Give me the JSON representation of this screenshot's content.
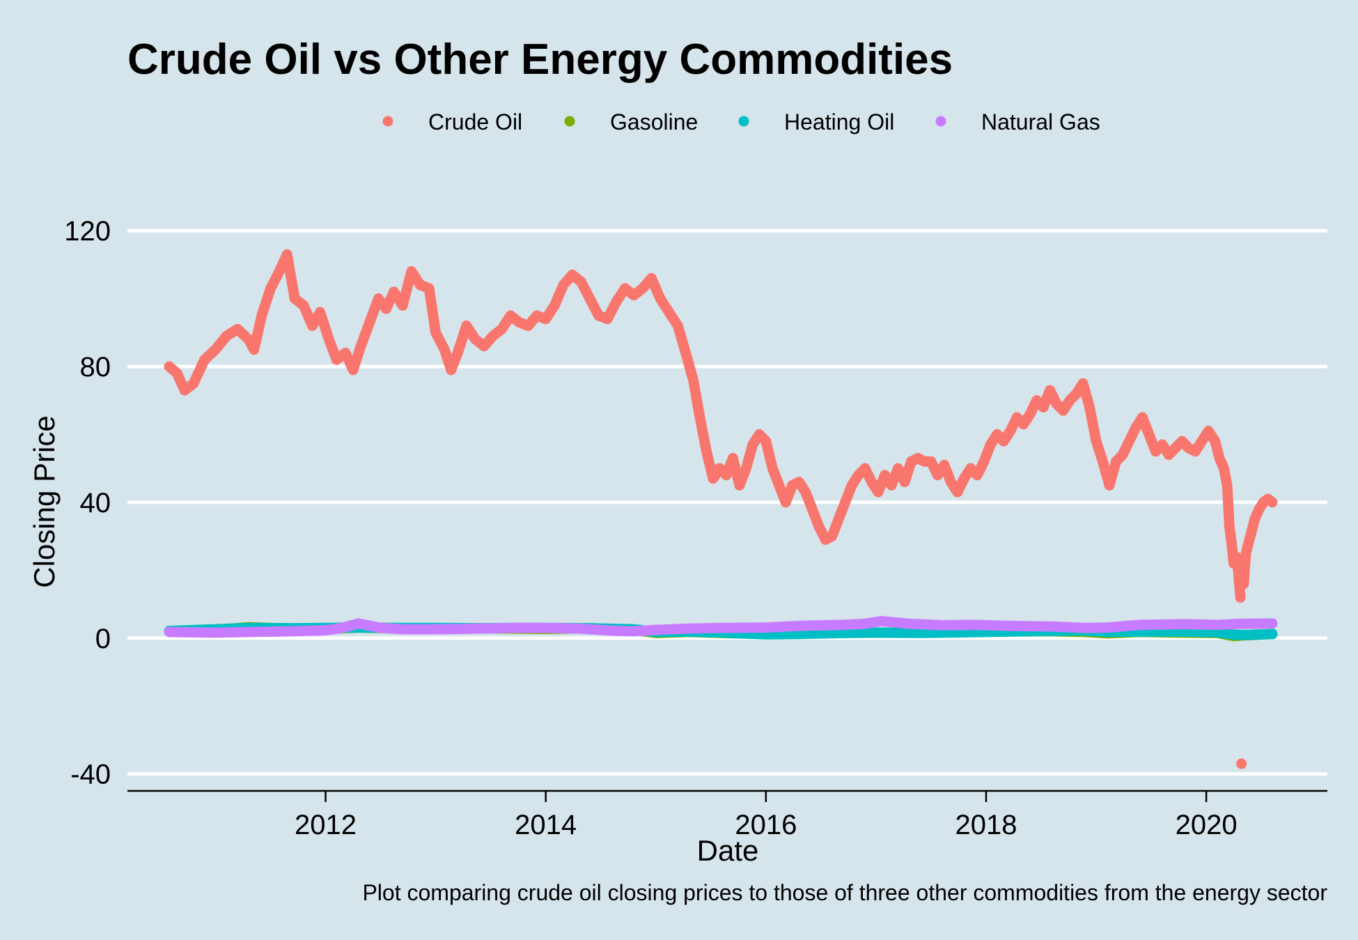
{
  "chart_data": {
    "type": "scatter",
    "title": "Crude Oil vs Other Energy Commodities",
    "xlabel": "Date",
    "ylabel": "Closing Price",
    "caption": "Plot comparing crude oil closing prices to those of three other commodities from the energy sector",
    "xlim": [
      2010.2,
      2021.1
    ],
    "ylim": [
      -45,
      135
    ],
    "x_ticks": [
      {
        "value": 2012,
        "label": "2012"
      },
      {
        "value": 2014,
        "label": "2014"
      },
      {
        "value": 2016,
        "label": "2016"
      },
      {
        "value": 2018,
        "label": "2018"
      },
      {
        "value": 2020,
        "label": "2020"
      }
    ],
    "y_ticks": [
      {
        "value": -40,
        "label": "-40"
      },
      {
        "value": 0,
        "label": "0"
      },
      {
        "value": 40,
        "label": "40"
      },
      {
        "value": 80,
        "label": "80"
      },
      {
        "value": 120,
        "label": "120"
      }
    ],
    "grid": "horizontal-major",
    "legend_position": "top",
    "series": [
      {
        "name": "Crude Oil",
        "color": "#f8766d",
        "points": [
          [
            2010.58,
            80
          ],
          [
            2010.65,
            78
          ],
          [
            2010.72,
            73
          ],
          [
            2010.8,
            75
          ],
          [
            2010.9,
            82
          ],
          [
            2011.0,
            85
          ],
          [
            2011.1,
            89
          ],
          [
            2011.2,
            91
          ],
          [
            2011.3,
            88
          ],
          [
            2011.35,
            85
          ],
          [
            2011.42,
            95
          ],
          [
            2011.5,
            103
          ],
          [
            2011.58,
            108
          ],
          [
            2011.65,
            113
          ],
          [
            2011.72,
            100
          ],
          [
            2011.8,
            98
          ],
          [
            2011.88,
            92
          ],
          [
            2011.95,
            96
          ],
          [
            2012.03,
            88
          ],
          [
            2012.1,
            82
          ],
          [
            2012.18,
            84
          ],
          [
            2012.25,
            79
          ],
          [
            2012.32,
            86
          ],
          [
            2012.4,
            93
          ],
          [
            2012.48,
            100
          ],
          [
            2012.55,
            97
          ],
          [
            2012.62,
            102
          ],
          [
            2012.7,
            98
          ],
          [
            2012.78,
            108
          ],
          [
            2012.86,
            104
          ],
          [
            2012.94,
            103
          ],
          [
            2013.0,
            90
          ],
          [
            2013.08,
            85
          ],
          [
            2013.14,
            79
          ],
          [
            2013.2,
            84
          ],
          [
            2013.28,
            92
          ],
          [
            2013.36,
            88
          ],
          [
            2013.44,
            86
          ],
          [
            2013.52,
            89
          ],
          [
            2013.6,
            91
          ],
          [
            2013.68,
            95
          ],
          [
            2013.76,
            93
          ],
          [
            2013.84,
            92
          ],
          [
            2013.92,
            95
          ],
          [
            2014.0,
            94
          ],
          [
            2014.08,
            98
          ],
          [
            2014.16,
            104
          ],
          [
            2014.24,
            107
          ],
          [
            2014.32,
            105
          ],
          [
            2014.4,
            100
          ],
          [
            2014.48,
            95
          ],
          [
            2014.56,
            94
          ],
          [
            2014.64,
            99
          ],
          [
            2014.72,
            103
          ],
          [
            2014.8,
            101
          ],
          [
            2014.88,
            103
          ],
          [
            2014.96,
            106
          ],
          [
            2015.04,
            100
          ],
          [
            2015.12,
            96
          ],
          [
            2015.2,
            92
          ],
          [
            2015.28,
            83
          ],
          [
            2015.34,
            76
          ],
          [
            2015.4,
            65
          ],
          [
            2015.46,
            55
          ],
          [
            2015.52,
            47
          ],
          [
            2015.58,
            50
          ],
          [
            2015.64,
            48
          ],
          [
            2015.7,
            53
          ],
          [
            2015.76,
            45
          ],
          [
            2015.82,
            50
          ],
          [
            2015.88,
            57
          ],
          [
            2015.94,
            60
          ],
          [
            2016.0,
            58
          ],
          [
            2016.06,
            50
          ],
          [
            2016.12,
            45
          ],
          [
            2016.18,
            40
          ],
          [
            2016.24,
            45
          ],
          [
            2016.3,
            46
          ],
          [
            2016.36,
            43
          ],
          [
            2016.42,
            38
          ],
          [
            2016.48,
            33
          ],
          [
            2016.54,
            29
          ],
          [
            2016.6,
            30
          ],
          [
            2016.66,
            35
          ],
          [
            2016.72,
            40
          ],
          [
            2016.78,
            45
          ],
          [
            2016.84,
            48
          ],
          [
            2016.9,
            50
          ],
          [
            2016.96,
            46
          ],
          [
            2017.02,
            43
          ],
          [
            2017.08,
            48
          ],
          [
            2017.14,
            45
          ],
          [
            2017.2,
            50
          ],
          [
            2017.26,
            46
          ],
          [
            2017.32,
            52
          ],
          [
            2017.38,
            53
          ],
          [
            2017.44,
            52
          ],
          [
            2017.5,
            52
          ],
          [
            2017.56,
            48
          ],
          [
            2017.62,
            51
          ],
          [
            2017.68,
            46
          ],
          [
            2017.74,
            43
          ],
          [
            2017.8,
            47
          ],
          [
            2017.86,
            50
          ],
          [
            2017.92,
            48
          ],
          [
            2017.98,
            52
          ],
          [
            2018.04,
            57
          ],
          [
            2018.1,
            60
          ],
          [
            2018.16,
            58
          ],
          [
            2018.22,
            61
          ],
          [
            2018.28,
            65
          ],
          [
            2018.34,
            63
          ],
          [
            2018.4,
            66
          ],
          [
            2018.46,
            70
          ],
          [
            2018.52,
            68
          ],
          [
            2018.58,
            73
          ],
          [
            2018.64,
            69
          ],
          [
            2018.7,
            67
          ],
          [
            2018.76,
            70
          ],
          [
            2018.82,
            72
          ],
          [
            2018.88,
            75
          ],
          [
            2018.94,
            68
          ],
          [
            2019.0,
            58
          ],
          [
            2019.06,
            52
          ],
          [
            2019.12,
            45
          ],
          [
            2019.18,
            52
          ],
          [
            2019.24,
            54
          ],
          [
            2019.3,
            58
          ],
          [
            2019.36,
            62
          ],
          [
            2019.42,
            65
          ],
          [
            2019.48,
            60
          ],
          [
            2019.54,
            55
          ],
          [
            2019.6,
            57
          ],
          [
            2019.66,
            54
          ],
          [
            2019.72,
            56
          ],
          [
            2019.78,
            58
          ],
          [
            2019.84,
            56
          ],
          [
            2019.9,
            55
          ],
          [
            2019.96,
            58
          ],
          [
            2020.02,
            61
          ],
          [
            2020.08,
            58
          ],
          [
            2020.12,
            53
          ],
          [
            2020.16,
            50
          ],
          [
            2020.19,
            45
          ],
          [
            2020.21,
            33
          ],
          [
            2020.23,
            28
          ],
          [
            2020.25,
            22
          ],
          [
            2020.27,
            24
          ],
          [
            2020.29,
            20
          ],
          [
            2020.31,
            12
          ],
          [
            2020.32,
            -37
          ],
          [
            2020.34,
            16
          ],
          [
            2020.36,
            25
          ],
          [
            2020.4,
            30
          ],
          [
            2020.44,
            35
          ],
          [
            2020.48,
            38
          ],
          [
            2020.52,
            40
          ],
          [
            2020.56,
            41
          ],
          [
            2020.6,
            40
          ]
        ]
      },
      {
        "name": "Gasoline",
        "color": "#7cae00",
        "points": [
          [
            2010.58,
            2.0
          ],
          [
            2011.0,
            2.4
          ],
          [
            2011.3,
            3.2
          ],
          [
            2011.7,
            2.8
          ],
          [
            2012.0,
            2.7
          ],
          [
            2012.3,
            3.1
          ],
          [
            2012.7,
            2.8
          ],
          [
            2013.0,
            2.7
          ],
          [
            2013.4,
            2.9
          ],
          [
            2013.7,
            2.8
          ],
          [
            2014.0,
            2.7
          ],
          [
            2014.4,
            2.9
          ],
          [
            2014.8,
            2.4
          ],
          [
            2015.0,
            1.5
          ],
          [
            2015.3,
            1.8
          ],
          [
            2015.6,
            1.5
          ],
          [
            2016.0,
            1.2
          ],
          [
            2016.3,
            1.4
          ],
          [
            2016.7,
            1.5
          ],
          [
            2017.0,
            1.6
          ],
          [
            2017.4,
            1.6
          ],
          [
            2017.8,
            1.8
          ],
          [
            2018.2,
            2.0
          ],
          [
            2018.6,
            2.0
          ],
          [
            2018.9,
            1.8
          ],
          [
            2019.1,
            1.4
          ],
          [
            2019.4,
            1.8
          ],
          [
            2019.8,
            1.6
          ],
          [
            2020.1,
            1.5
          ],
          [
            2020.25,
            0.6
          ],
          [
            2020.35,
            0.8
          ],
          [
            2020.6,
            1.2
          ]
        ]
      },
      {
        "name": "Heating Oil",
        "color": "#00bfc4",
        "points": [
          [
            2010.58,
            2.1
          ],
          [
            2011.0,
            2.6
          ],
          [
            2011.3,
            3.0
          ],
          [
            2011.7,
            2.9
          ],
          [
            2012.0,
            3.0
          ],
          [
            2012.3,
            3.1
          ],
          [
            2012.7,
            3.0
          ],
          [
            2013.0,
            3.0
          ],
          [
            2013.4,
            2.9
          ],
          [
            2013.7,
            3.0
          ],
          [
            2014.0,
            3.0
          ],
          [
            2014.4,
            2.9
          ],
          [
            2014.8,
            2.6
          ],
          [
            2015.0,
            1.8
          ],
          [
            2015.3,
            1.9
          ],
          [
            2015.6,
            1.6
          ],
          [
            2016.0,
            1.1
          ],
          [
            2016.3,
            1.2
          ],
          [
            2016.7,
            1.5
          ],
          [
            2017.0,
            1.6
          ],
          [
            2017.4,
            1.5
          ],
          [
            2017.8,
            1.7
          ],
          [
            2018.2,
            1.9
          ],
          [
            2018.6,
            2.1
          ],
          [
            2018.9,
            2.2
          ],
          [
            2019.1,
            1.8
          ],
          [
            2019.4,
            1.9
          ],
          [
            2019.8,
            1.9
          ],
          [
            2020.1,
            1.7
          ],
          [
            2020.25,
            1.0
          ],
          [
            2020.35,
            0.9
          ],
          [
            2020.6,
            1.2
          ]
        ]
      },
      {
        "name": "Natural Gas",
        "color": "#c77cff",
        "points": [
          [
            2010.58,
            1.8
          ],
          [
            2011.0,
            1.6
          ],
          [
            2011.3,
            1.8
          ],
          [
            2011.7,
            2.0
          ],
          [
            2012.0,
            2.3
          ],
          [
            2012.15,
            3.0
          ],
          [
            2012.3,
            4.3
          ],
          [
            2012.5,
            3.0
          ],
          [
            2012.7,
            2.6
          ],
          [
            2013.0,
            2.6
          ],
          [
            2013.4,
            2.8
          ],
          [
            2013.7,
            3.0
          ],
          [
            2014.0,
            3.0
          ],
          [
            2014.3,
            2.8
          ],
          [
            2014.6,
            2.2
          ],
          [
            2014.8,
            2.0
          ],
          [
            2015.0,
            2.4
          ],
          [
            2015.3,
            2.8
          ],
          [
            2015.6,
            3.0
          ],
          [
            2016.0,
            3.1
          ],
          [
            2016.3,
            3.6
          ],
          [
            2016.7,
            3.9
          ],
          [
            2016.9,
            4.2
          ],
          [
            2017.05,
            5.0
          ],
          [
            2017.3,
            4.2
          ],
          [
            2017.6,
            3.8
          ],
          [
            2017.9,
            3.9
          ],
          [
            2018.2,
            3.6
          ],
          [
            2018.6,
            3.4
          ],
          [
            2018.9,
            3.0
          ],
          [
            2019.1,
            3.1
          ],
          [
            2019.4,
            3.9
          ],
          [
            2019.8,
            4.1
          ],
          [
            2020.1,
            3.9
          ],
          [
            2020.3,
            4.2
          ],
          [
            2020.6,
            4.3
          ]
        ]
      }
    ]
  }
}
